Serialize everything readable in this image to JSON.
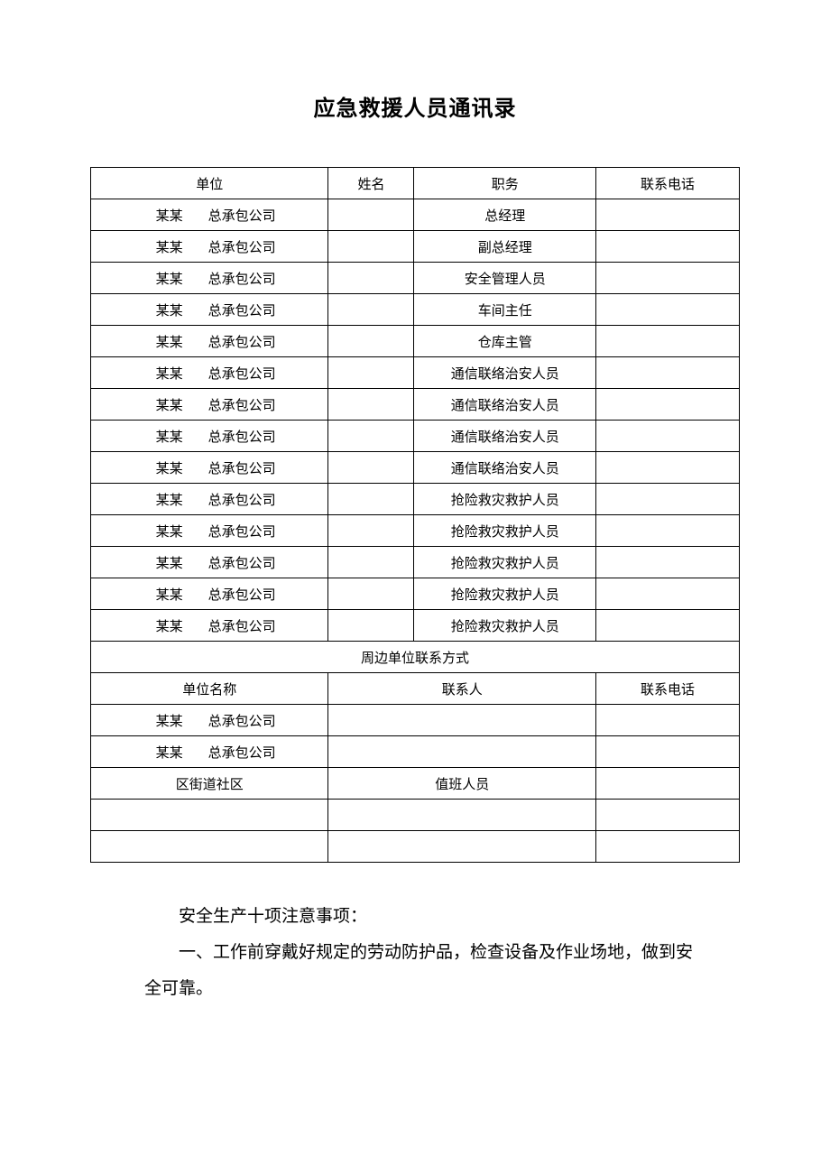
{
  "title": "应急救援人员通讯录",
  "headers": {
    "unit": "单位",
    "name": "姓名",
    "role": "职务",
    "phone": "联系电话"
  },
  "rows": [
    {
      "unit_a": "某某",
      "unit_b": "总承包公司",
      "name": "",
      "role": "总经理",
      "phone": ""
    },
    {
      "unit_a": "某某",
      "unit_b": "总承包公司",
      "name": "",
      "role": "副总经理",
      "phone": ""
    },
    {
      "unit_a": "某某",
      "unit_b": "总承包公司",
      "name": "",
      "role": "安全管理人员",
      "phone": ""
    },
    {
      "unit_a": "某某",
      "unit_b": "总承包公司",
      "name": "",
      "role": "车间主任",
      "phone": ""
    },
    {
      "unit_a": "某某",
      "unit_b": "总承包公司",
      "name": "",
      "role": "仓库主管",
      "phone": ""
    },
    {
      "unit_a": "某某",
      "unit_b": "总承包公司",
      "name": "",
      "role": "通信联络治安人员",
      "phone": ""
    },
    {
      "unit_a": "某某",
      "unit_b": "总承包公司",
      "name": "",
      "role": "通信联络治安人员",
      "phone": ""
    },
    {
      "unit_a": "某某",
      "unit_b": "总承包公司",
      "name": "",
      "role": "通信联络治安人员",
      "phone": ""
    },
    {
      "unit_a": "某某",
      "unit_b": "总承包公司",
      "name": "",
      "role": "通信联络治安人员",
      "phone": ""
    },
    {
      "unit_a": "某某",
      "unit_b": "总承包公司",
      "name": "",
      "role": "抢险救灾救护人员",
      "phone": ""
    },
    {
      "unit_a": "某某",
      "unit_b": "总承包公司",
      "name": "",
      "role": "抢险救灾救护人员",
      "phone": ""
    },
    {
      "unit_a": "某某",
      "unit_b": "总承包公司",
      "name": "",
      "role": "抢险救灾救护人员",
      "phone": ""
    },
    {
      "unit_a": "某某",
      "unit_b": "总承包公司",
      "name": "",
      "role": "抢险救灾救护人员",
      "phone": ""
    },
    {
      "unit_a": "某某",
      "unit_b": "总承包公司",
      "name": "",
      "role": "抢险救灾救护人员",
      "phone": ""
    }
  ],
  "section2_title": "周边单位联系方式",
  "headers2": {
    "unit_name": "单位名称",
    "contact": "联系人",
    "phone": "联系电话"
  },
  "rows2": [
    {
      "unit_a": "某某",
      "unit_b": "总承包公司",
      "contact": "",
      "phone": ""
    },
    {
      "unit_a": "某某",
      "unit_b": "总承包公司",
      "contact": "",
      "phone": ""
    },
    {
      "unit_full": "区街道社区",
      "contact": "值班人员",
      "phone": ""
    },
    {
      "unit_full": "",
      "contact": "",
      "phone": ""
    },
    {
      "unit_full": "",
      "contact": "",
      "phone": ""
    }
  ],
  "notes": {
    "heading": "安全生产十项注意事项：",
    "item1": "一、工作前穿戴好规定的劳动防护品，检查设备及作业场地，做到安全可靠。"
  }
}
